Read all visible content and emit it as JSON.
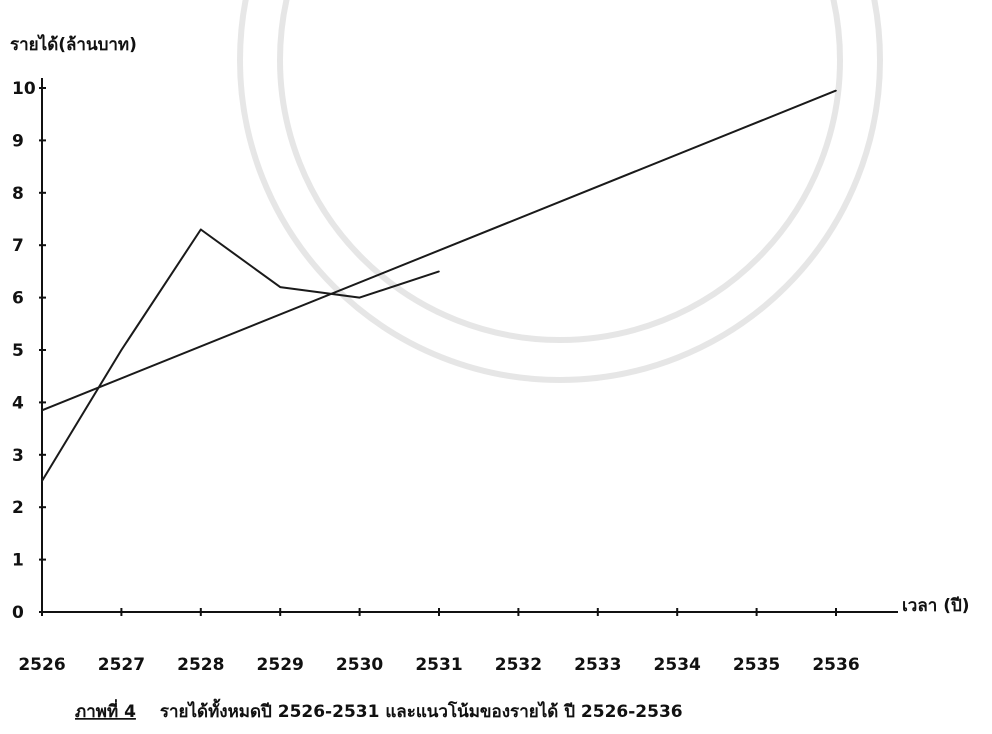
{
  "chart_data": {
    "type": "line",
    "ylabel": "รายได้(ล้านบาท)",
    "xlabel": "เวลา (ปี)",
    "caption_number": "ภาพที่ 4",
    "caption_text": "รายได้ทั้งหมดปี 2526-2531 และแนวโน้มของรายได้ ปี 2526-2536",
    "x_ticks": [
      "2526",
      "2527",
      "2528",
      "2529",
      "2530",
      "2531",
      "2532",
      "2533",
      "2534",
      "2535",
      "2536"
    ],
    "y_ticks": [
      "0",
      "1",
      "2",
      "3",
      "4",
      "5",
      "6",
      "7",
      "8",
      "9",
      "10"
    ],
    "xlim": [
      2526,
      2536
    ],
    "ylim": [
      0,
      10
    ],
    "series": [
      {
        "values": [
          {
            "x": 2526,
            "y": 2.5
          },
          {
            "x": 2527,
            "y": 5.0
          },
          {
            "x": 2528,
            "y": 7.3
          },
          {
            "x": 2529,
            "y": 6.2
          },
          {
            "x": 2530,
            "y": 6.0
          },
          {
            "x": 2531,
            "y": 6.5
          }
        ],
        "color": "#1a1a1a"
      },
      {
        "values": [
          {
            "x": 2526,
            "y": 3.85
          },
          {
            "x": 2536,
            "y": 9.95
          }
        ],
        "color": "#1a1a1a"
      }
    ],
    "grid": false
  }
}
